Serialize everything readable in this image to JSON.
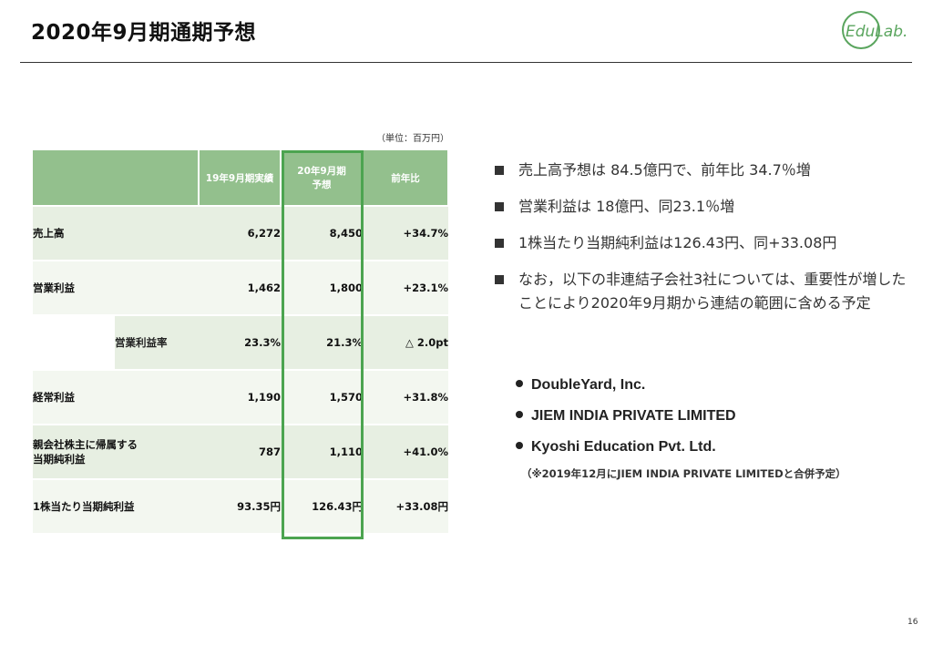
{
  "header": {
    "title": "2020年9月期通期予想",
    "logo_text": "EduLab."
  },
  "table": {
    "unit_note": "（単位：百万円）",
    "columns": [
      "19年9月期実績",
      "20年9月期\n予想",
      "前年比"
    ],
    "col_prev_label": "19年9月期実績",
    "col_fc_line1": "20年9月期",
    "col_fc_line2": "予想",
    "col_yoy_label": "前年比",
    "rows": [
      {
        "label": "売上高",
        "prev": "6,272",
        "forecast": "8,450",
        "yoy": "+34.7%"
      },
      {
        "label": "営業利益",
        "prev": "1,462",
        "forecast": "1,800",
        "yoy": "+23.1%"
      },
      {
        "label": "営業利益率",
        "prev": "23.3%",
        "forecast": "21.3%",
        "yoy": "△ 2.0pt"
      },
      {
        "label": "経常利益",
        "prev": "1,190",
        "forecast": "1,570",
        "yoy": "+31.8%"
      },
      {
        "label_line1": "親会社株主に帰属する",
        "label_line2": "当期純利益",
        "prev": "787",
        "forecast": "1,110",
        "yoy": "+41.0%"
      },
      {
        "label": "1株当たり当期純利益",
        "prev": "93.35円",
        "forecast": "126.43円",
        "yoy": "+33.08円"
      }
    ]
  },
  "bullets": [
    "売上高予想は 84.5億円で、前年比 34.7％増",
    "営業利益は 18億円、同23.1％増",
    "1株当たり当期純利益は126.43円、同+33.08円",
    "なお，以下の非連結子会社3社については、重要性が増したことにより2020年9月期から連結の範囲に含める予定"
  ],
  "companies": [
    "DoubleYard, Inc.",
    "JIEM INDIA PRIVATE LIMITED",
    "Kyoshi Education Pvt. Ltd."
  ],
  "note": "（※2019年12月にJIEM INDIA PRIVATE LIMITEDと合併予定）",
  "page_number": "16",
  "colors": {
    "header_green": "#93c08d",
    "highlight_border": "#4ca450",
    "row_shade": "#e7efe2",
    "row_light": "#f3f7f0",
    "logo_green": "#5aa55e"
  }
}
